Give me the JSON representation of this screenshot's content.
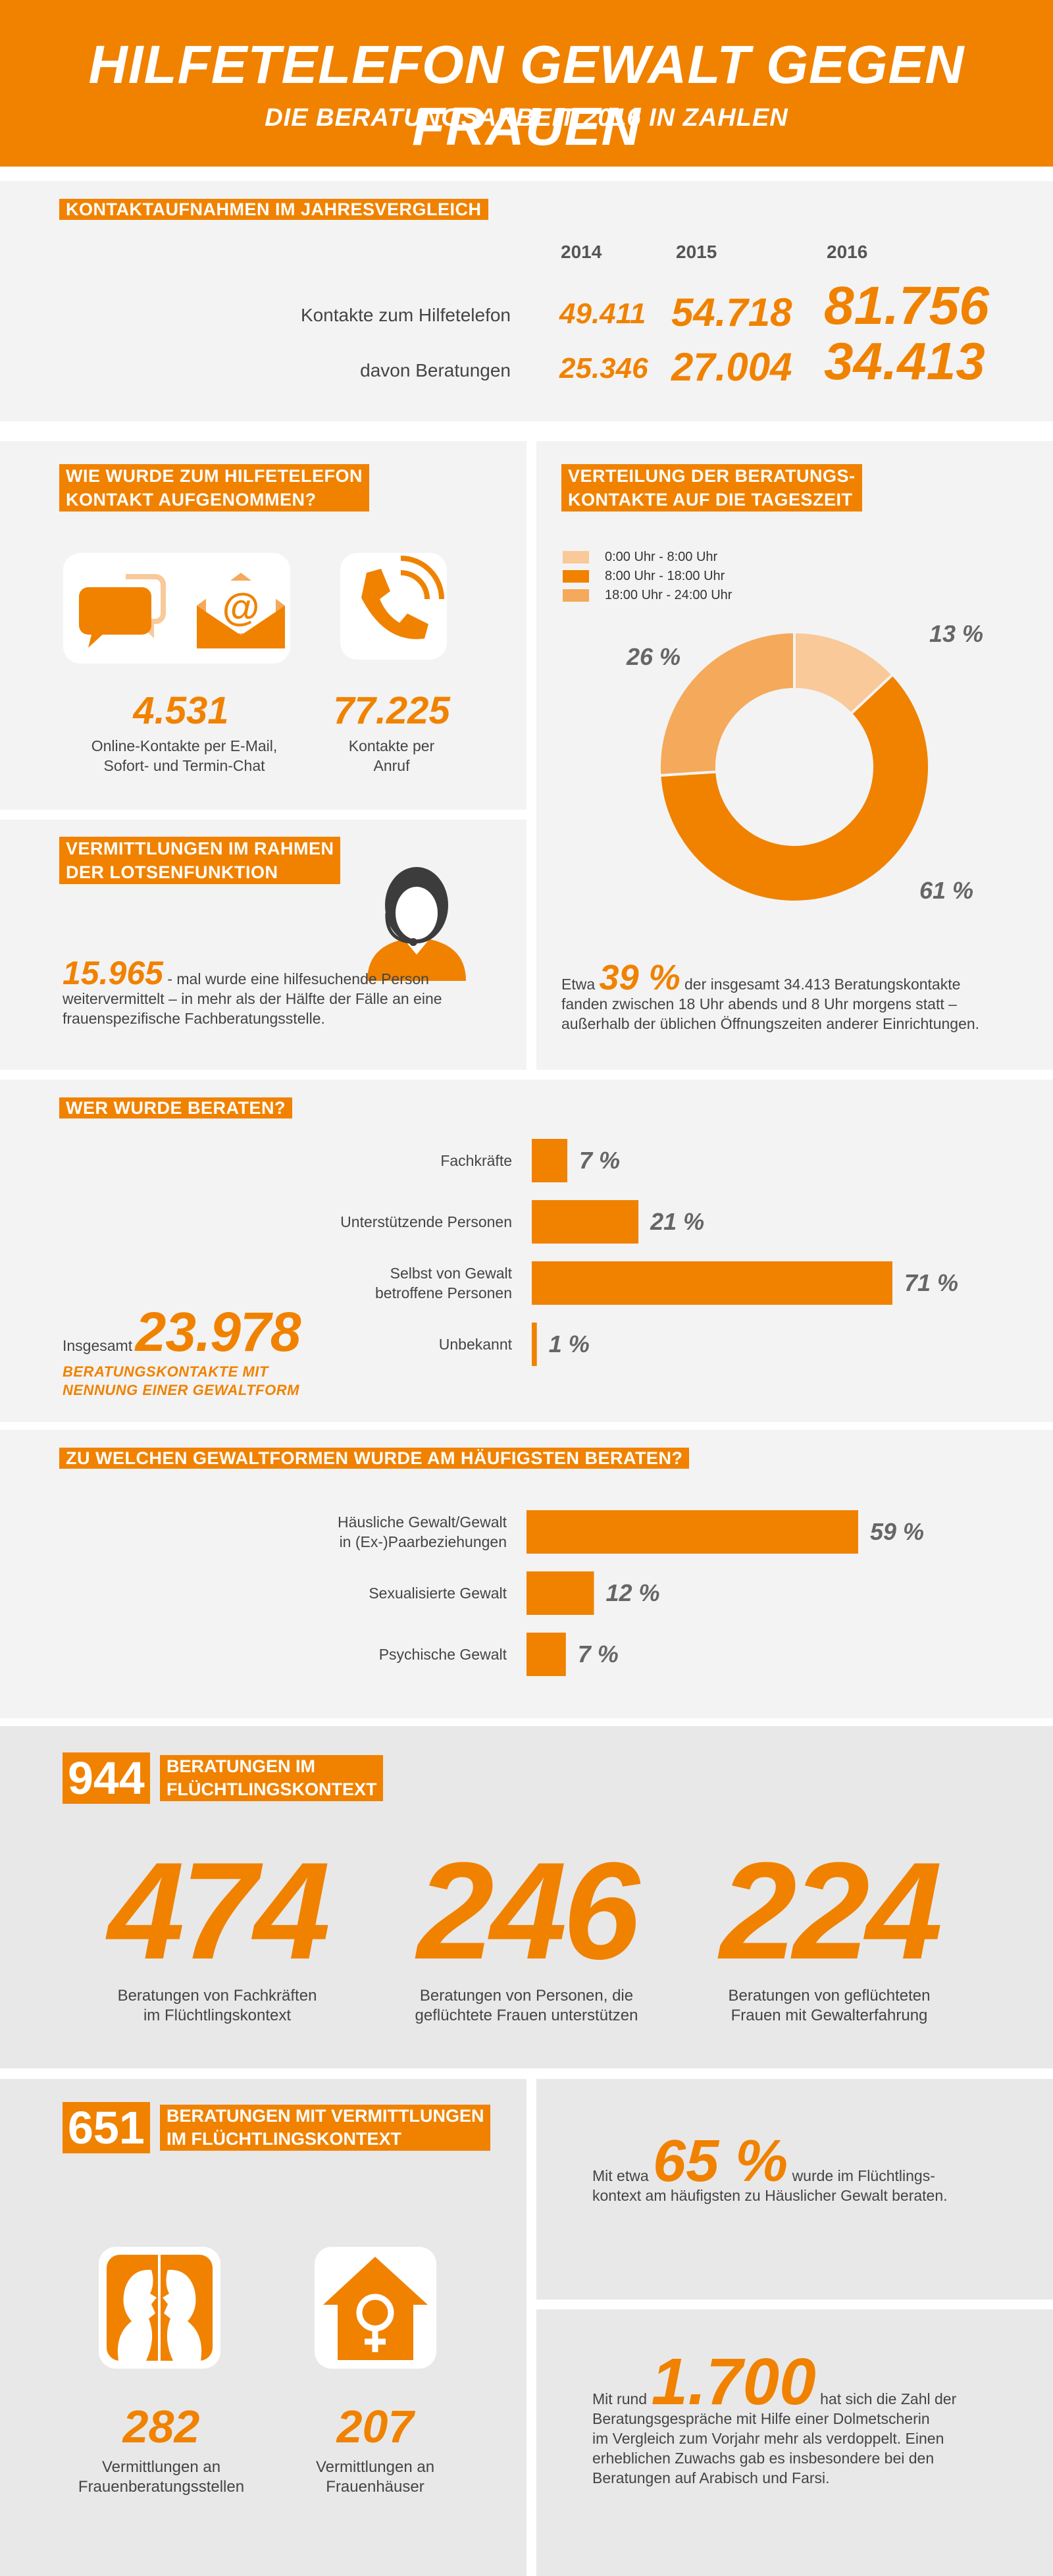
{
  "header": {
    "title": "HILFETELEFON GEWALT GEGEN FRAUEN",
    "subtitle": "DIE BERATUNGSARBEIT 2016 IN ZAHLEN"
  },
  "colors": {
    "accent": "#f08200",
    "light": "#f9c99a",
    "mid": "#f5a95a",
    "panel": "#f3f3f3"
  },
  "contacts": {
    "heading": "KONTAKTAUFNAHMEN IM JAHRESVERGLEICH",
    "years": [
      "2014",
      "2015",
      "2016"
    ],
    "row1_label": "Kontakte zum Hilfetelefon",
    "row1": [
      "49.411",
      "54.718",
      "81.756"
    ],
    "row2_label": "davon Beratungen",
    "row2": [
      "25.346",
      "27.004",
      "34.413"
    ]
  },
  "contact_method": {
    "heading_line1": "WIE WURDE ZUM HILFETELEFON",
    "heading_line2": "KONTAKT AUFGENOMMEN?",
    "online_value": "4.531",
    "online_caption_line1": "Online-Kontakte per E-Mail,",
    "online_caption_line2": "Sofort- und Termin-Chat",
    "phone_value": "77.225",
    "phone_caption_line1": "Kontakte per",
    "phone_caption_line2": "Anruf",
    "icons": [
      "chat-bubbles-icon",
      "email-icon",
      "phone-icon"
    ]
  },
  "referrals": {
    "heading_line1": "VERMITTLUNGEN IM RAHMEN",
    "heading_line2": "DER LOTSENFUNKTION",
    "value": "15.965",
    "text_line1": " - mal wurde eine hilfesuchende Person",
    "text_line2": "weitervermittelt – in mehr als der Hälfte der Fälle an eine",
    "text_line3": "frauenspezifische Fachberatungsstelle.",
    "icon": "headset-operator-icon"
  },
  "daytime": {
    "heading_line1": "VERTEILUNG DER BERATUNGS-",
    "heading_line2": "KONTAKTE AUF DIE TAGESZEIT",
    "note_prefix": "Etwa",
    "note_value": "39 %",
    "note_line1": "der insgesamt 34.413 Beratungskontakte",
    "note_line2": "fanden zwischen 18 Uhr abends und 8 Uhr morgens statt –",
    "note_line3": "außerhalb der üblichen Öffnungszeiten anderer Einrichtungen."
  },
  "who": {
    "heading": "WER WURDE BERATEN?",
    "total_prefix": "Insgesamt",
    "total_value": "23.978",
    "total_sub_line1": "BERATUNGSKONTAKTE MIT",
    "total_sub_line2": "NENNUNG EINER GEWALTFORM"
  },
  "forms": {
    "heading": "ZU WELCHEN GEWALTFORMEN WURDE AM HÄUFIGSTEN BERATEN?"
  },
  "refugee": {
    "count": "944",
    "heading_line1": "BERATUNGEN IM",
    "heading_line2": "FLÜCHTLINGSKONTEXT",
    "items": [
      {
        "value": "474",
        "line1": "Beratungen von Fachkräften",
        "line2": "im Flüchtlingskontext"
      },
      {
        "value": "246",
        "line1": "Beratungen von Personen, die",
        "line2": "geflüchtete Frauen unterstützen"
      },
      {
        "value": "224",
        "line1": "Beratungen von geflüchteten",
        "line2": "Frauen mit Gewalterfahrung"
      }
    ]
  },
  "refugee_referrals": {
    "count": "651",
    "heading_line1": "BERATUNGEN MIT VERMITTLUNGEN",
    "heading_line2": "IM FLÜCHTLINGSKONTEXT",
    "item1_value": "282",
    "item1_line1": "Vermittlungen an",
    "item1_line2": "Frauenberatungsstellen",
    "item2_value": "207",
    "item2_line1": "Vermittlungen an",
    "item2_line2": "Frauenhäuser",
    "icons": [
      "faces-icon",
      "house-female-icon"
    ]
  },
  "domestic": {
    "prefix": "Mit etwa",
    "value": "65 %",
    "line1": "wurde im Flüchtlings-",
    "line2": "kontext am häufigsten zu Häuslicher Gewalt beraten."
  },
  "interpreter": {
    "prefix": "Mit rund",
    "value": "1.700",
    "line1": "hat sich die Zahl der",
    "line2": "Beratungsgespräche mit Hilfe einer Dolmetscherin",
    "line3": "im Vergleich zum Vorjahr mehr als verdoppelt. Einen",
    "line4": "erheblichen Zuwachs gab es insbesondere bei den",
    "line5": "Beratungen auf Arabisch und Farsi."
  },
  "chart_data": [
    {
      "type": "pie",
      "legend": "top-left",
      "categories": [
        "0:00 Uhr -   8:00 Uhr",
        "8:00 Uhr - 18:00 Uhr",
        "18:00 Uhr - 24:00 Uhr"
      ],
      "values": [
        13,
        61,
        26
      ],
      "labels": [
        "13 %",
        "61 %",
        "26 %"
      ],
      "colors": [
        "#f9c99a",
        "#f08200",
        "#f5a95a"
      ]
    },
    {
      "type": "bar",
      "orientation": "horizontal",
      "categories": [
        "Fachkräfte",
        "Unterstützende Personen",
        "Selbst von Gewalt betroffene Personen",
        "Unbekannt"
      ],
      "category_lines": [
        [
          "Fachkräfte"
        ],
        [
          "Unterstützende Personen"
        ],
        [
          "Selbst von Gewalt",
          "betroffene Personen"
        ],
        [
          "Unbekannt"
        ]
      ],
      "values": [
        7,
        21,
        71,
        1
      ],
      "labels": [
        "7 %",
        "21 %",
        "71 %",
        "1 %"
      ]
    },
    {
      "type": "bar",
      "orientation": "horizontal",
      "categories": [
        "Häusliche Gewalt/Gewalt in (Ex-)Paarbeziehungen",
        "Sexualisierte Gewalt",
        "Psychische Gewalt"
      ],
      "category_lines": [
        [
          "Häusliche Gewalt/Gewalt",
          "in (Ex-)Paarbeziehungen"
        ],
        [
          "Sexualisierte Gewalt"
        ],
        [
          "Psychische Gewalt"
        ]
      ],
      "values": [
        59,
        12,
        7
      ],
      "labels": [
        "59 %",
        "12 %",
        "7 %"
      ]
    }
  ]
}
